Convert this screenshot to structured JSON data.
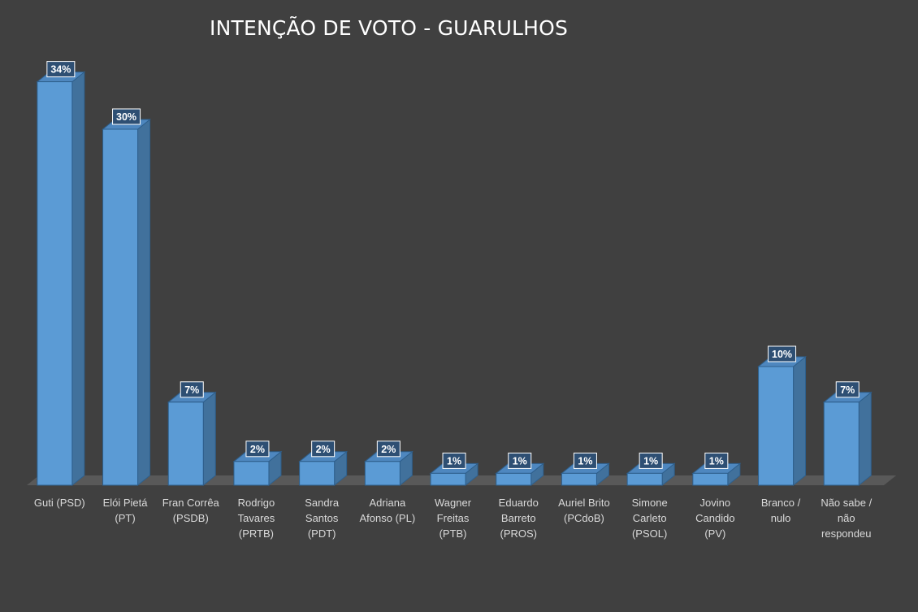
{
  "chart_data": {
    "type": "bar",
    "title": "INTENÇÃO DE VOTO - GUARULHOS",
    "categories": [
      [
        "Guti (PSD)"
      ],
      [
        "Elói Pietá",
        "(PT)"
      ],
      [
        "Fran Corrêa",
        "(PSDB)"
      ],
      [
        "Rodrigo",
        "Tavares",
        "(PRTB)"
      ],
      [
        "Sandra",
        "Santos",
        "(PDT)"
      ],
      [
        "Adriana",
        "Afonso (PL)"
      ],
      [
        "Wagner",
        "Freitas",
        "(PTB)"
      ],
      [
        "Eduardo",
        "Barreto",
        "(PROS)"
      ],
      [
        "Auriel Brito",
        "(PCdoB)"
      ],
      [
        "Simone",
        "Carleto",
        "(PSOL)"
      ],
      [
        "Jovino",
        "Candido",
        "(PV)"
      ],
      [
        "Branco /",
        "nulo"
      ],
      [
        "Não sabe /",
        "não",
        "respondeu"
      ]
    ],
    "values": [
      34,
      30,
      7,
      2,
      2,
      2,
      1,
      1,
      1,
      1,
      1,
      10,
      7
    ],
    "value_labels": [
      "34%",
      "30%",
      "7%",
      "2%",
      "2%",
      "2%",
      "1%",
      "1%",
      "1%",
      "1%",
      "1%",
      "10%",
      "7%"
    ],
    "unit": "%",
    "style": "3d-column",
    "colors": {
      "background": "#404040",
      "bar_front": "#5b9bd5",
      "bar_side": "#41719c",
      "bar_top": "#4e87bf",
      "bar_edge": "#2e5f8c",
      "floor": "#595959",
      "text": "#ffffff",
      "axis_text": "#d9d9d9",
      "label_box": "#2e4f73"
    }
  }
}
